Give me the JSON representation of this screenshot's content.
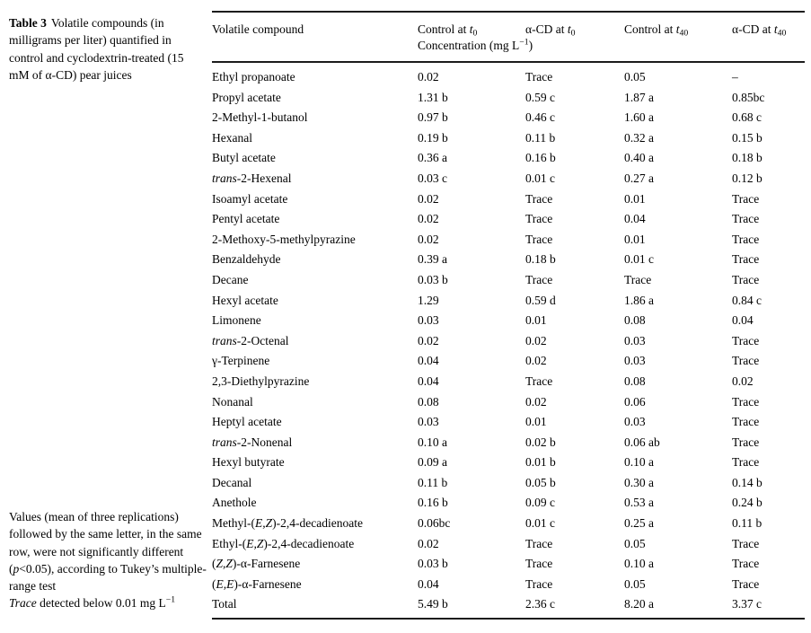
{
  "caption": {
    "label": "Table 3",
    "text": "Volatile compounds (in milligrams per liter) quantified in control and cyclodextrin-treated (15 mM of α-CD) pear juices"
  },
  "table": {
    "columns": [
      "Volatile compound",
      "Control at *t*~0~",
      "α-CD at *t*~0~",
      "Control at *t*~40~",
      "α-CD at *t*~40~"
    ],
    "subheader": "Concentration (mg L^−1^)",
    "rows": [
      [
        "Ethyl propanoate",
        "0.02",
        "Trace",
        "0.05",
        "–"
      ],
      [
        "Propyl acetate",
        "1.31 b",
        "0.59 c",
        "1.87 a",
        "0.85bc"
      ],
      [
        "2-Methyl-1-butanol",
        "0.97 b",
        "0.46 c",
        "1.60 a",
        "0.68 c"
      ],
      [
        "Hexanal",
        "0.19 b",
        "0.11 b",
        "0.32 a",
        "0.15 b"
      ],
      [
        "Butyl acetate",
        "0.36 a",
        "0.16 b",
        "0.40 a",
        "0.18 b"
      ],
      [
        "*trans*-2-Hexenal",
        "0.03 c",
        "0.01 c",
        "0.27 a",
        "0.12 b"
      ],
      [
        "Isoamyl acetate",
        "0.02",
        "Trace",
        "0.01",
        "Trace"
      ],
      [
        "Pentyl acetate",
        "0.02",
        "Trace",
        "0.04",
        "Trace"
      ],
      [
        "2-Methoxy-5-methylpyrazine",
        "0.02",
        "Trace",
        "0.01",
        "Trace"
      ],
      [
        "Benzaldehyde",
        "0.39 a",
        "0.18 b",
        "0.01 c",
        "Trace"
      ],
      [
        "Decane",
        "0.03 b",
        "Trace",
        "Trace",
        "Trace"
      ],
      [
        "Hexyl acetate",
        "1.29",
        "0.59 d",
        "1.86 a",
        "0.84 c"
      ],
      [
        "Limonene",
        "0.03",
        "0.01",
        "0.08",
        "0.04"
      ],
      [
        "*trans*-2-Octenal",
        "0.02",
        "0.02",
        "0.03",
        "Trace"
      ],
      [
        "γ-Terpinene",
        "0.04",
        "0.02",
        "0.03",
        "Trace"
      ],
      [
        "2,3-Diethylpyrazine",
        "0.04",
        "Trace",
        "0.08",
        "0.02"
      ],
      [
        "Nonanal",
        "0.08",
        "0.02",
        "0.06",
        "Trace"
      ],
      [
        "Heptyl acetate",
        "0.03",
        "0.01",
        "0.03",
        "Trace"
      ],
      [
        "*trans*-2-Nonenal",
        "0.10 a",
        "0.02 b",
        "0.06 ab",
        "Trace"
      ],
      [
        "Hexyl butyrate",
        "0.09 a",
        "0.01 b",
        "0.10 a",
        "Trace"
      ],
      [
        "Decanal",
        "0.11 b",
        "0.05 b",
        "0.30 a",
        "0.14 b"
      ],
      [
        "Anethole",
        "0.16 b",
        "0.09 c",
        "0.53 a",
        "0.24 b"
      ],
      [
        "Methyl-(*E,Z*)-2,4-decadienoate",
        "0.06bc",
        "0.01 c",
        "0.25 a",
        "0.11 b"
      ],
      [
        "Ethyl-(*E,Z*)-2,4-decadienoate",
        "0.02",
        "Trace",
        "0.05",
        "Trace"
      ],
      [
        "(*Z,Z*)-α-Farnesene",
        "0.03 b",
        "Trace",
        "0.10 a",
        "Trace"
      ],
      [
        "(*E,E*)-α-Farnesene",
        "0.04",
        "Trace",
        "0.05",
        "Trace"
      ],
      [
        "Total",
        "5.49 b",
        "2.36 c",
        "8.20 a",
        "3.37 c"
      ]
    ]
  },
  "footnotes": [
    "Values (mean of three replications) followed by the same letter, in the same row, were not significantly different (*p*<0.05), according to Tukey’s multiple-range test",
    "*Trace* detected below 0.01 mg L^−1^"
  ]
}
